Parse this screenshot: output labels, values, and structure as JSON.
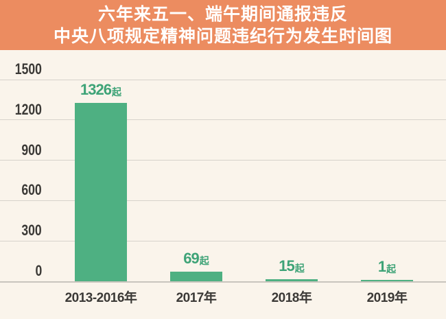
{
  "header": {
    "title_line1": "六年来五一、端午期间通报违反",
    "title_line2": "中央八项规定精神问题违纪行为发生时间图"
  },
  "chart_data": {
    "type": "bar",
    "title": "六年来五一、端午期间通报违反中央八项规定精神问题违纪行为发生时间图",
    "categories": [
      "2013-2016年",
      "2017年",
      "2018年",
      "2019年"
    ],
    "values": [
      1326,
      69,
      15,
      1
    ],
    "data_labels": [
      "1326",
      "69",
      "15",
      "1"
    ],
    "data_label_suffix": "起",
    "yticks": [
      0,
      300,
      600,
      900,
      1200,
      1500
    ],
    "ytick_labels": [
      "0",
      "300",
      "600",
      "900",
      "1200",
      "1500"
    ],
    "ylim": [
      0,
      1500
    ],
    "grid": true,
    "legend": "none",
    "xlabel": "",
    "ylabel": ""
  },
  "colors": {
    "banner_bg": "#EC8C60",
    "banner_text": "#FFFFFF",
    "bar": "#4EB082",
    "data_label": "#3EA377",
    "axis_text": "#3B3936",
    "gridline": "#D6D2CB",
    "background": "#FAF4EB"
  }
}
